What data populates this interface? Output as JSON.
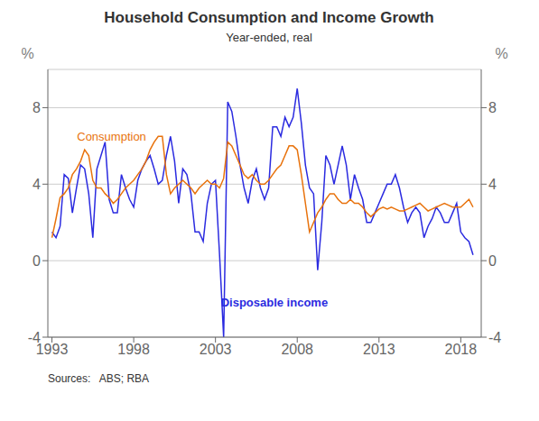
{
  "chart_data": {
    "type": "line",
    "title": "Household Consumption and Income Growth",
    "subtitle": "Year-ended, real",
    "source": "Sources:   ABS; RBA",
    "ylabel": "%",
    "y2label": "%",
    "grid": true,
    "x": [
      1993.0,
      1993.25,
      1993.5,
      1993.75,
      1994.0,
      1994.25,
      1994.5,
      1994.75,
      1995.0,
      1995.25,
      1995.5,
      1995.75,
      1996.0,
      1996.25,
      1996.5,
      1996.75,
      1997.0,
      1997.25,
      1997.5,
      1997.75,
      1998.0,
      1998.25,
      1998.5,
      1998.75,
      1999.0,
      1999.25,
      1999.5,
      1999.75,
      2000.0,
      2000.25,
      2000.5,
      2000.75,
      2001.0,
      2001.25,
      2001.5,
      2001.75,
      2002.0,
      2002.25,
      2002.5,
      2002.75,
      2003.0,
      2003.25,
      2003.5,
      2003.75,
      2004.0,
      2004.25,
      2004.5,
      2004.75,
      2005.0,
      2005.25,
      2005.5,
      2005.75,
      2006.0,
      2006.25,
      2006.5,
      2006.75,
      2007.0,
      2007.25,
      2007.5,
      2007.75,
      2008.0,
      2008.25,
      2008.5,
      2008.75,
      2009.0,
      2009.25,
      2009.5,
      2009.75,
      2010.0,
      2010.25,
      2010.5,
      2010.75,
      2011.0,
      2011.25,
      2011.5,
      2011.75,
      2012.0,
      2012.25,
      2012.5,
      2012.75,
      2013.0,
      2013.25,
      2013.5,
      2013.75,
      2014.0,
      2014.25,
      2014.5,
      2014.75,
      2015.0,
      2015.25,
      2015.5,
      2015.75,
      2016.0,
      2016.25,
      2016.5,
      2016.75,
      2017.0,
      2017.25,
      2017.5,
      2017.75,
      2018.0,
      2018.25,
      2018.5,
      2018.75
    ],
    "series": [
      {
        "name": "Disposable income",
        "color": "#2B2BE0",
        "values": [
          1.5,
          1.2,
          1.8,
          4.5,
          4.3,
          2.5,
          3.8,
          5.0,
          4.8,
          3.5,
          1.2,
          4.8,
          5.5,
          6.2,
          3.2,
          2.5,
          2.5,
          4.5,
          3.8,
          3.2,
          2.8,
          4.2,
          4.8,
          5.2,
          5.5,
          4.8,
          4.0,
          4.2,
          5.5,
          6.5,
          5.2,
          3.0,
          4.8,
          4.5,
          3.5,
          1.5,
          1.5,
          1.0,
          3.0,
          4.0,
          4.2,
          0.3,
          -4.0,
          8.3,
          7.8,
          6.5,
          5.0,
          3.8,
          3.0,
          4.2,
          4.8,
          3.8,
          3.2,
          3.8,
          7.0,
          7.0,
          6.5,
          7.5,
          7.0,
          7.5,
          9.0,
          7.2,
          5.0,
          3.8,
          3.5,
          -0.5,
          2.0,
          5.5,
          5.0,
          4.0,
          5.0,
          6.0,
          5.0,
          3.2,
          4.5,
          3.8,
          3.2,
          2.0,
          2.0,
          2.5,
          3.0,
          3.5,
          4.0,
          4.0,
          4.5,
          3.8,
          2.8,
          2.0,
          2.5,
          2.8,
          2.5,
          1.2,
          1.8,
          2.2,
          2.8,
          2.5,
          2.0,
          2.0,
          2.5,
          3.0,
          1.5,
          1.2,
          1.0,
          0.3
        ]
      },
      {
        "name": "Consumption",
        "color": "#E8720C",
        "values": [
          1.2,
          2.2,
          3.3,
          3.5,
          3.8,
          4.5,
          4.8,
          5.2,
          5.8,
          5.5,
          4.2,
          3.8,
          3.8,
          3.5,
          3.3,
          3.0,
          3.2,
          3.5,
          3.8,
          4.0,
          4.2,
          4.5,
          4.8,
          5.2,
          5.8,
          6.2,
          6.5,
          6.5,
          4.5,
          3.5,
          3.8,
          4.0,
          4.2,
          4.0,
          3.8,
          3.5,
          3.8,
          4.0,
          4.2,
          4.0,
          4.0,
          3.8,
          4.3,
          6.2,
          6.0,
          5.5,
          5.0,
          4.5,
          4.3,
          4.5,
          4.2,
          4.0,
          4.0,
          4.2,
          4.5,
          4.8,
          5.0,
          5.5,
          6.0,
          6.0,
          5.8,
          4.5,
          3.0,
          1.5,
          2.0,
          2.5,
          2.8,
          3.2,
          3.5,
          3.5,
          3.2,
          3.0,
          3.0,
          3.2,
          3.0,
          3.0,
          2.8,
          2.5,
          2.3,
          2.5,
          2.7,
          2.8,
          2.7,
          2.8,
          2.7,
          2.6,
          2.6,
          2.7,
          2.8,
          2.9,
          3.0,
          2.8,
          2.6,
          2.7,
          2.8,
          2.9,
          3.0,
          2.9,
          2.8,
          2.8,
          2.8,
          3.0,
          3.2,
          2.8
        ]
      }
    ],
    "annotations": [
      {
        "text": "Consumption",
        "x": 1994.2,
        "y": 6.5,
        "color": "#E8720C"
      },
      {
        "text": "Disposable income",
        "x": 2003.0,
        "y": -2.2,
        "color": "#2B2BE0",
        "bold": true
      }
    ],
    "xlim": [
      1992.75,
      2019.25
    ],
    "xticks": [
      1993,
      1998,
      2003,
      2008,
      2013,
      2018
    ],
    "ylim": [
      -4,
      10
    ],
    "yticks": [
      -4,
      0,
      4,
      8
    ],
    "y2lim": [
      -4,
      10
    ],
    "y2ticks": [
      -4,
      0,
      4,
      8
    ]
  }
}
